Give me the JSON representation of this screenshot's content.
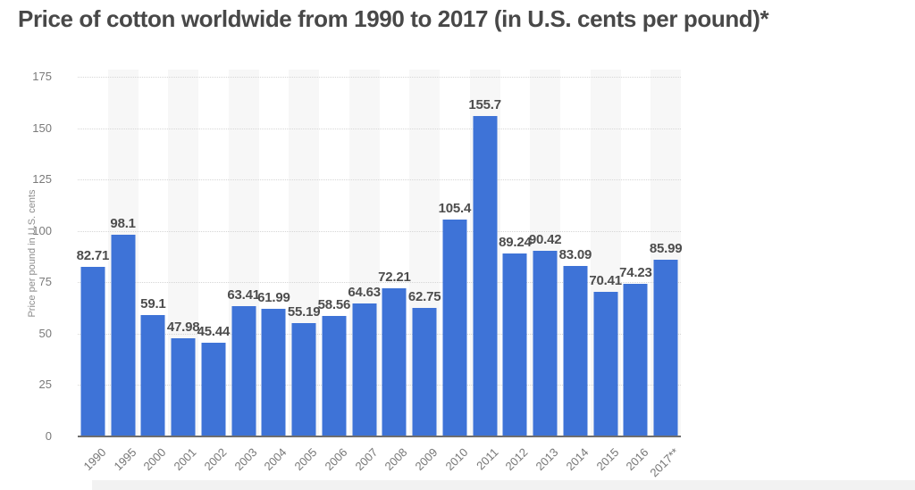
{
  "page": {
    "title": "Price of cotton worldwide from 1990 to 2017 (in U.S. cents per pound)*"
  },
  "chart_data": {
    "type": "bar",
    "title": "Price of cotton worldwide from 1990 to 2017 (in U.S. cents per pound)*",
    "categories": [
      "1990",
      "1995",
      "2000",
      "2001",
      "2002",
      "2003",
      "2004",
      "2005",
      "2006",
      "2007",
      "2008",
      "2009",
      "2010",
      "2011",
      "2012",
      "2013",
      "2014",
      "2015",
      "2016",
      "2017**"
    ],
    "values": [
      82.71,
      98.1,
      59.1,
      47.98,
      45.44,
      63.41,
      61.99,
      55.19,
      58.56,
      64.63,
      72.21,
      62.75,
      105.4,
      155.7,
      89.24,
      90.42,
      83.09,
      70.41,
      74.23,
      85.99
    ],
    "value_labels": [
      "82.71",
      "98.1",
      "59.1",
      "47.98",
      "45.44",
      "63.41",
      "61.99",
      "55.19",
      "58.56",
      "64.63",
      "72.21",
      "62.75",
      "105.4",
      "155.7",
      "89.24",
      "90.42",
      "83.09",
      "70.41",
      "74.23",
      "85.99"
    ],
    "xlabel": "",
    "ylabel": "Price per pound in U.S. cents",
    "yticks": [
      0,
      25,
      50,
      75,
      100,
      125,
      150,
      175
    ],
    "ylim": [
      0,
      175
    ],
    "grid": "horizontal-dotted",
    "legend": "none",
    "bar_color": "#3e73d7",
    "stripe_color": "#f7f7f7",
    "axis_line_color": "#6e6e6e",
    "label_color": "#4d4d4d",
    "tick_color": "#7a7a7a"
  }
}
